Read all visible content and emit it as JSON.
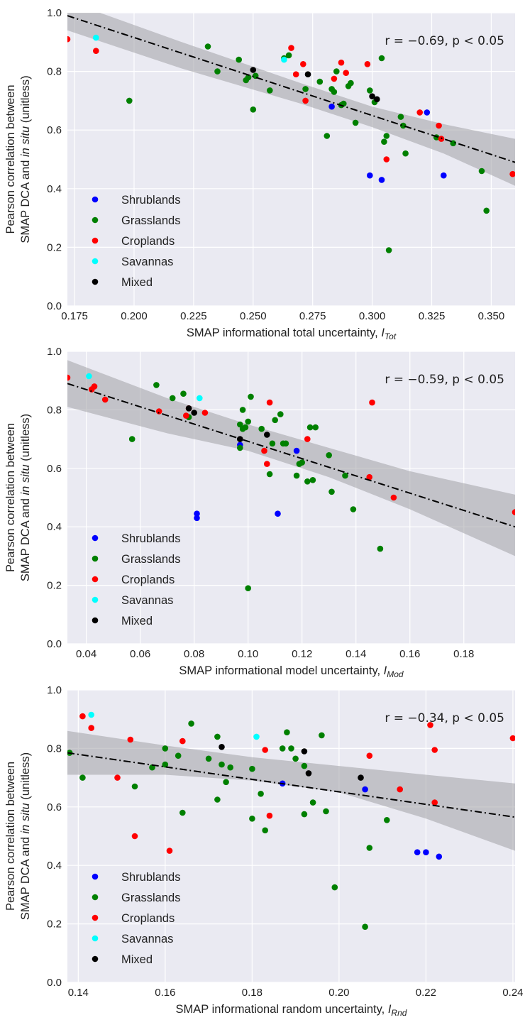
{
  "legend": [
    {
      "name": "Shrublands",
      "color": "#0000ff"
    },
    {
      "name": "Grasslands",
      "color": "#008000"
    },
    {
      "name": "Croplands",
      "color": "#ff0000"
    },
    {
      "name": "Savannas",
      "color": "#00ffff"
    },
    {
      "name": "Mixed",
      "color": "#000000"
    }
  ],
  "style": {
    "plot_bg": "#eaeaf2",
    "grid": "#ffffff",
    "ci_band": "#a0a0a6",
    "fit_line": "#000000"
  },
  "chart_data": [
    {
      "type": "scatter",
      "ylabel_line1": "Pearson correlation between",
      "ylabel_line2_pre": "SMAP  DCA and ",
      "ylabel_line2_it": "in situ",
      "ylabel_line2_post": " (unitless)",
      "xlabel_text": "SMAP informational total uncertainty, ",
      "xlabel_var": "I",
      "xlabel_sub": "Tot",
      "annotation": "r = −0.69,  p < 0.05",
      "xlim": [
        0.172,
        0.36
      ],
      "ylim": [
        0.0,
        1.0
      ],
      "xticks": [
        "0.175",
        "0.200",
        "0.225",
        "0.250",
        "0.275",
        "0.300",
        "0.325",
        "0.350"
      ],
      "xtick_values": [
        0.175,
        0.2,
        0.225,
        0.25,
        0.275,
        0.3,
        0.325,
        0.35
      ],
      "yticks": [
        "0.0",
        "0.2",
        "0.4",
        "0.6",
        "0.8",
        "1.0"
      ],
      "ytick_values": [
        0.0,
        0.2,
        0.4,
        0.6,
        0.8,
        1.0
      ],
      "fit": {
        "x": [
          0.172,
          0.36
        ],
        "y": [
          0.99,
          0.49
        ]
      },
      "ci": {
        "x": [
          0.172,
          0.22,
          0.27,
          0.3,
          0.33,
          0.36
        ],
        "upper": [
          1.04,
          0.9,
          0.76,
          0.68,
          0.62,
          0.57
        ],
        "lower": [
          0.94,
          0.81,
          0.69,
          0.61,
          0.52,
          0.41
        ]
      },
      "series": [
        {
          "name": "Shrublands",
          "x": [
            0.283,
            0.299,
            0.304,
            0.323,
            0.33
          ],
          "y": [
            0.68,
            0.445,
            0.43,
            0.66,
            0.445
          ]
        },
        {
          "name": "Grasslands",
          "x": [
            0.198,
            0.231,
            0.235,
            0.244,
            0.247,
            0.248,
            0.25,
            0.251,
            0.257,
            0.263,
            0.265,
            0.272,
            0.278,
            0.281,
            0.283,
            0.284,
            0.285,
            0.287,
            0.288,
            0.29,
            0.291,
            0.293,
            0.299,
            0.301,
            0.304,
            0.305,
            0.306,
            0.307,
            0.312,
            0.313,
            0.314,
            0.327,
            0.334,
            0.346,
            0.348
          ],
          "y": [
            0.7,
            0.885,
            0.8,
            0.84,
            0.77,
            0.78,
            0.67,
            0.785,
            0.735,
            0.845,
            0.855,
            0.74,
            0.765,
            0.58,
            0.74,
            0.73,
            0.8,
            0.685,
            0.69,
            0.75,
            0.76,
            0.625,
            0.735,
            0.695,
            0.845,
            0.56,
            0.58,
            0.19,
            0.645,
            0.615,
            0.52,
            0.575,
            0.555,
            0.46,
            0.325
          ]
        },
        {
          "name": "Croplands",
          "x": [
            0.172,
            0.184,
            0.266,
            0.268,
            0.271,
            0.272,
            0.284,
            0.287,
            0.289,
            0.298,
            0.306,
            0.32,
            0.328,
            0.329,
            0.359
          ],
          "y": [
            0.91,
            0.87,
            0.88,
            0.79,
            0.825,
            0.7,
            0.775,
            0.83,
            0.795,
            0.825,
            0.5,
            0.66,
            0.615,
            0.57,
            0.45
          ]
        },
        {
          "name": "Savannas",
          "x": [
            0.184,
            0.263
          ],
          "y": [
            0.915,
            0.84
          ]
        },
        {
          "name": "Mixed",
          "x": [
            0.25,
            0.273,
            0.3,
            0.302
          ],
          "y": [
            0.805,
            0.79,
            0.715,
            0.705
          ]
        }
      ]
    },
    {
      "type": "scatter",
      "ylabel_line1": "Pearson correlation between",
      "ylabel_line2_pre": "SMAP  DCA and ",
      "ylabel_line2_it": "in situ",
      "ylabel_line2_post": " (unitless)",
      "xlabel_text": "SMAP informational model uncertainty, ",
      "xlabel_var": "I",
      "xlabel_sub": "Mod",
      "annotation": "r = −0.59,  p < 0.05",
      "xlim": [
        0.033,
        0.199
      ],
      "ylim": [
        0.0,
        1.0
      ],
      "xticks": [
        "0.04",
        "0.06",
        "0.08",
        "0.10",
        "0.12",
        "0.14",
        "0.16",
        "0.18"
      ],
      "xtick_values": [
        0.04,
        0.06,
        0.08,
        0.1,
        0.12,
        0.14,
        0.16,
        0.18
      ],
      "yticks": [
        "0.0",
        "0.2",
        "0.4",
        "0.6",
        "0.8",
        "1.0"
      ],
      "ytick_values": [
        0.0,
        0.2,
        0.4,
        0.6,
        0.8,
        1.0
      ],
      "fit": {
        "x": [
          0.033,
          0.199
        ],
        "y": [
          0.89,
          0.4
        ]
      },
      "ci": {
        "x": [
          0.033,
          0.07,
          0.1,
          0.13,
          0.16,
          0.199
        ],
        "upper": [
          0.97,
          0.84,
          0.75,
          0.67,
          0.59,
          0.51
        ],
        "lower": [
          0.81,
          0.72,
          0.66,
          0.57,
          0.46,
          0.3
        ]
      },
      "series": [
        {
          "name": "Shrublands",
          "x": [
            0.081,
            0.081,
            0.097,
            0.111,
            0.118
          ],
          "y": [
            0.445,
            0.43,
            0.68,
            0.445,
            0.66
          ]
        },
        {
          "name": "Grasslands",
          "x": [
            0.057,
            0.066,
            0.072,
            0.076,
            0.078,
            0.097,
            0.097,
            0.098,
            0.098,
            0.099,
            0.1,
            0.1,
            0.101,
            0.105,
            0.108,
            0.109,
            0.11,
            0.112,
            0.113,
            0.114,
            0.118,
            0.119,
            0.12,
            0.122,
            0.123,
            0.124,
            0.125,
            0.13,
            0.131,
            0.136,
            0.139,
            0.149
          ],
          "y": [
            0.7,
            0.885,
            0.84,
            0.855,
            0.775,
            0.67,
            0.75,
            0.8,
            0.735,
            0.74,
            0.76,
            0.19,
            0.845,
            0.735,
            0.58,
            0.685,
            0.765,
            0.785,
            0.685,
            0.685,
            0.575,
            0.615,
            0.62,
            0.555,
            0.74,
            0.56,
            0.74,
            0.645,
            0.52,
            0.575,
            0.46,
            0.325
          ]
        },
        {
          "name": "Croplands",
          "x": [
            0.033,
            0.042,
            0.043,
            0.047,
            0.067,
            0.077,
            0.078,
            0.084,
            0.106,
            0.107,
            0.108,
            0.122,
            0.145,
            0.146,
            0.154,
            0.199
          ],
          "y": [
            0.91,
            0.87,
            0.88,
            0.835,
            0.795,
            0.78,
            0.805,
            0.79,
            0.66,
            0.615,
            0.825,
            0.7,
            0.57,
            0.825,
            0.5,
            0.45
          ]
        },
        {
          "name": "Savannas",
          "x": [
            0.041,
            0.082
          ],
          "y": [
            0.915,
            0.84
          ]
        },
        {
          "name": "Mixed",
          "x": [
            0.078,
            0.08,
            0.097,
            0.107
          ],
          "y": [
            0.805,
            0.79,
            0.7,
            0.715
          ]
        }
      ]
    },
    {
      "type": "scatter",
      "ylabel_line1": "Pearson correlation between",
      "ylabel_line2_pre": "SMAP  DCA and ",
      "ylabel_line2_it": "in situ",
      "ylabel_line2_post": " (unitless)",
      "xlabel_text": "SMAP informational random uncertainty, ",
      "xlabel_var": "I",
      "xlabel_sub": "Rnd",
      "annotation": "r = −0.34,  p < 0.05",
      "xlim": [
        0.1375,
        0.2405
      ],
      "ylim": [
        0.0,
        1.0
      ],
      "xticks": [
        "0.14",
        "0.16",
        "0.18",
        "0.20",
        "0.22",
        "0.24"
      ],
      "xtick_values": [
        0.14,
        0.16,
        0.18,
        0.2,
        0.22,
        0.24
      ],
      "yticks": [
        "0.0",
        "0.2",
        "0.4",
        "0.6",
        "0.8",
        "1.0"
      ],
      "ytick_values": [
        0.0,
        0.2,
        0.4,
        0.6,
        0.8,
        1.0
      ],
      "fit": {
        "x": [
          0.1375,
          0.2405
        ],
        "y": [
          0.785,
          0.565
        ]
      },
      "ci": {
        "x": [
          0.1375,
          0.16,
          0.18,
          0.2,
          0.22,
          0.2405
        ],
        "upper": [
          0.86,
          0.81,
          0.77,
          0.74,
          0.71,
          0.68
        ],
        "lower": [
          0.71,
          0.71,
          0.69,
          0.65,
          0.56,
          0.45
        ]
      },
      "series": [
        {
          "name": "Shrublands",
          "x": [
            0.187,
            0.206,
            0.218,
            0.22,
            0.223
          ],
          "y": [
            0.68,
            0.66,
            0.445,
            0.445,
            0.43
          ]
        },
        {
          "name": "Grasslands",
          "x": [
            0.138,
            0.141,
            0.153,
            0.157,
            0.16,
            0.16,
            0.163,
            0.164,
            0.166,
            0.17,
            0.172,
            0.172,
            0.173,
            0.174,
            0.175,
            0.18,
            0.18,
            0.182,
            0.183,
            0.187,
            0.188,
            0.189,
            0.19,
            0.192,
            0.192,
            0.194,
            0.196,
            0.197,
            0.199,
            0.206,
            0.207,
            0.211
          ],
          "y": [
            0.785,
            0.7,
            0.67,
            0.735,
            0.8,
            0.745,
            0.775,
            0.58,
            0.885,
            0.765,
            0.84,
            0.625,
            0.745,
            0.685,
            0.735,
            0.56,
            0.73,
            0.645,
            0.52,
            0.8,
            0.855,
            0.8,
            0.765,
            0.575,
            0.74,
            0.615,
            0.845,
            0.585,
            0.325,
            0.19,
            0.46,
            0.555
          ]
        },
        {
          "name": "Croplands",
          "x": [
            0.141,
            0.143,
            0.149,
            0.152,
            0.153,
            0.161,
            0.164,
            0.183,
            0.184,
            0.207,
            0.214,
            0.221,
            0.222,
            0.222,
            0.24
          ],
          "y": [
            0.91,
            0.87,
            0.7,
            0.83,
            0.5,
            0.45,
            0.825,
            0.795,
            0.57,
            0.775,
            0.66,
            0.88,
            0.795,
            0.615,
            0.835
          ]
        },
        {
          "name": "Savannas",
          "x": [
            0.143,
            0.181
          ],
          "y": [
            0.915,
            0.84
          ]
        },
        {
          "name": "Mixed",
          "x": [
            0.173,
            0.192,
            0.193,
            0.205
          ],
          "y": [
            0.805,
            0.79,
            0.715,
            0.7
          ]
        }
      ]
    }
  ]
}
